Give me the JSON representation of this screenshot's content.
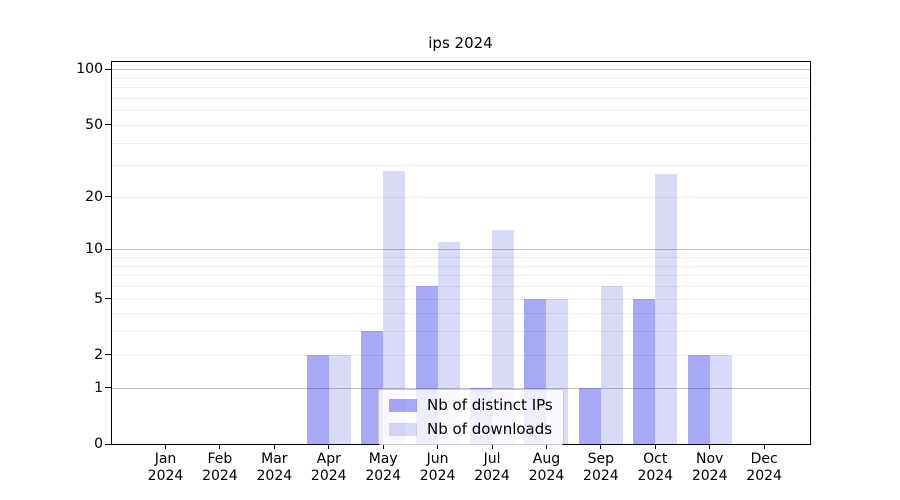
{
  "chart_data": {
    "type": "bar",
    "title": "ips 2024",
    "categories": [
      "Jan 2024",
      "Feb 2024",
      "Mar 2024",
      "Apr 2024",
      "May 2024",
      "Jun 2024",
      "Jul 2024",
      "Aug 2024",
      "Sep 2024",
      "Oct 2024",
      "Nov 2024",
      "Dec 2024"
    ],
    "series": [
      {
        "name": "Nb of distinct IPs",
        "values": [
          0,
          0,
          0,
          2,
          3,
          6,
          1,
          5,
          1,
          5,
          2,
          0
        ],
        "color": "rgba(0,0,230,0.34)",
        "color_on_white": "#a9a9f7"
      },
      {
        "name": "Nb of downloads",
        "values": [
          0,
          0,
          0,
          2,
          28,
          11,
          13,
          5,
          6,
          27,
          2,
          0
        ],
        "color": "rgba(0,0,210,0.15)",
        "color_on_white": "#d9d9f7"
      }
    ],
    "xlabel": "",
    "ylabel": "",
    "yscale": "log1p",
    "ylim": [
      0,
      112
    ],
    "yticks": [
      0,
      1,
      2,
      5,
      10,
      20,
      50,
      100
    ],
    "grid": "horizontal",
    "grid_major": [
      1,
      10,
      100
    ],
    "grid_minor": [
      2,
      3,
      4,
      5,
      6,
      7,
      8,
      9,
      20,
      30,
      40,
      50,
      60,
      70,
      80,
      90
    ],
    "legend_position": "lower center",
    "grid_major_color": "#c3c3c3",
    "grid_minor_color": "#ededed",
    "spine_color": "#000000"
  }
}
